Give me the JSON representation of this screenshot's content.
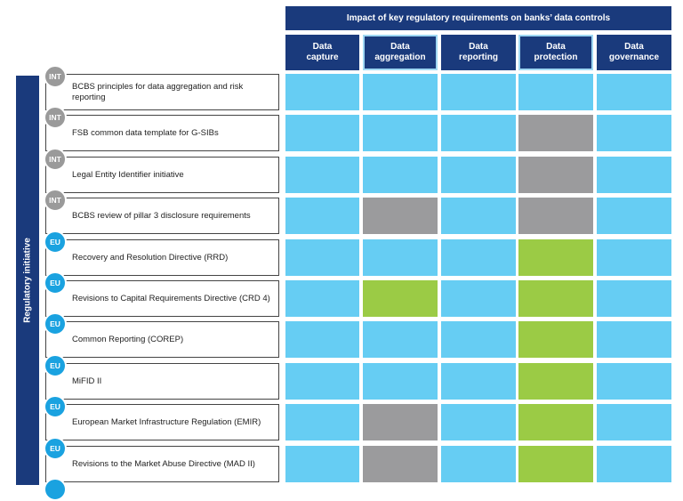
{
  "header": {
    "title": "Impact of  key regulatory requirements on banks’ data controls"
  },
  "columns": [
    {
      "label_line1": "Data",
      "label_line2": "capture"
    },
    {
      "label_line1": "Data",
      "label_line2": "aggregation"
    },
    {
      "label_line1": "Data",
      "label_line2": "reporting"
    },
    {
      "label_line1": "Data",
      "label_line2": "protection"
    },
    {
      "label_line1": "Data",
      "label_line2": "governance"
    }
  ],
  "sidebar": {
    "label": "Regulatory initiative"
  },
  "colors": {
    "navy": "#1a3a7c",
    "blue": "#66cdf3",
    "grey": "#9b9b9d",
    "green": "#9bcb45",
    "int_badge": "#9a9a9a",
    "eu_badge": "#1aa2e0"
  },
  "rows": [
    {
      "badge": "INT",
      "label": "BCBS principles for data aggregation and risk reporting",
      "cells": [
        "blue",
        "blue",
        "blue",
        "blue",
        "blue"
      ]
    },
    {
      "badge": "INT",
      "label": "FSB common data template for G-SIBs",
      "cells": [
        "blue",
        "blue",
        "blue",
        "grey",
        "blue"
      ]
    },
    {
      "badge": "INT",
      "label": "Legal Entity Identifier initiative",
      "cells": [
        "blue",
        "blue",
        "blue",
        "grey",
        "blue"
      ]
    },
    {
      "badge": "INT",
      "label": "BCBS review of pillar 3 disclosure requirements",
      "cells": [
        "blue",
        "grey",
        "blue",
        "grey",
        "blue"
      ]
    },
    {
      "badge": "EU",
      "label": "Recovery and Resolution Directive (RRD)",
      "cells": [
        "blue",
        "blue",
        "blue",
        "green",
        "blue"
      ]
    },
    {
      "badge": "EU",
      "label": "Revisions to Capital Requirements Directive (CRD 4)",
      "cells": [
        "blue",
        "green",
        "blue",
        "green",
        "blue"
      ]
    },
    {
      "badge": "EU",
      "label": "Common Reporting (COREP)",
      "cells": [
        "blue",
        "blue",
        "blue",
        "green",
        "blue"
      ]
    },
    {
      "badge": "EU",
      "label": "MiFID II",
      "cells": [
        "blue",
        "blue",
        "blue",
        "green",
        "blue"
      ]
    },
    {
      "badge": "EU",
      "label": "European Market Infrastructure Regulation (EMIR)",
      "cells": [
        "blue",
        "grey",
        "blue",
        "green",
        "blue"
      ]
    },
    {
      "badge": "EU",
      "label": "Revisions to the Market Abuse Directive (MAD II)",
      "cells": [
        "blue",
        "grey",
        "blue",
        "green",
        "blue"
      ]
    }
  ]
}
